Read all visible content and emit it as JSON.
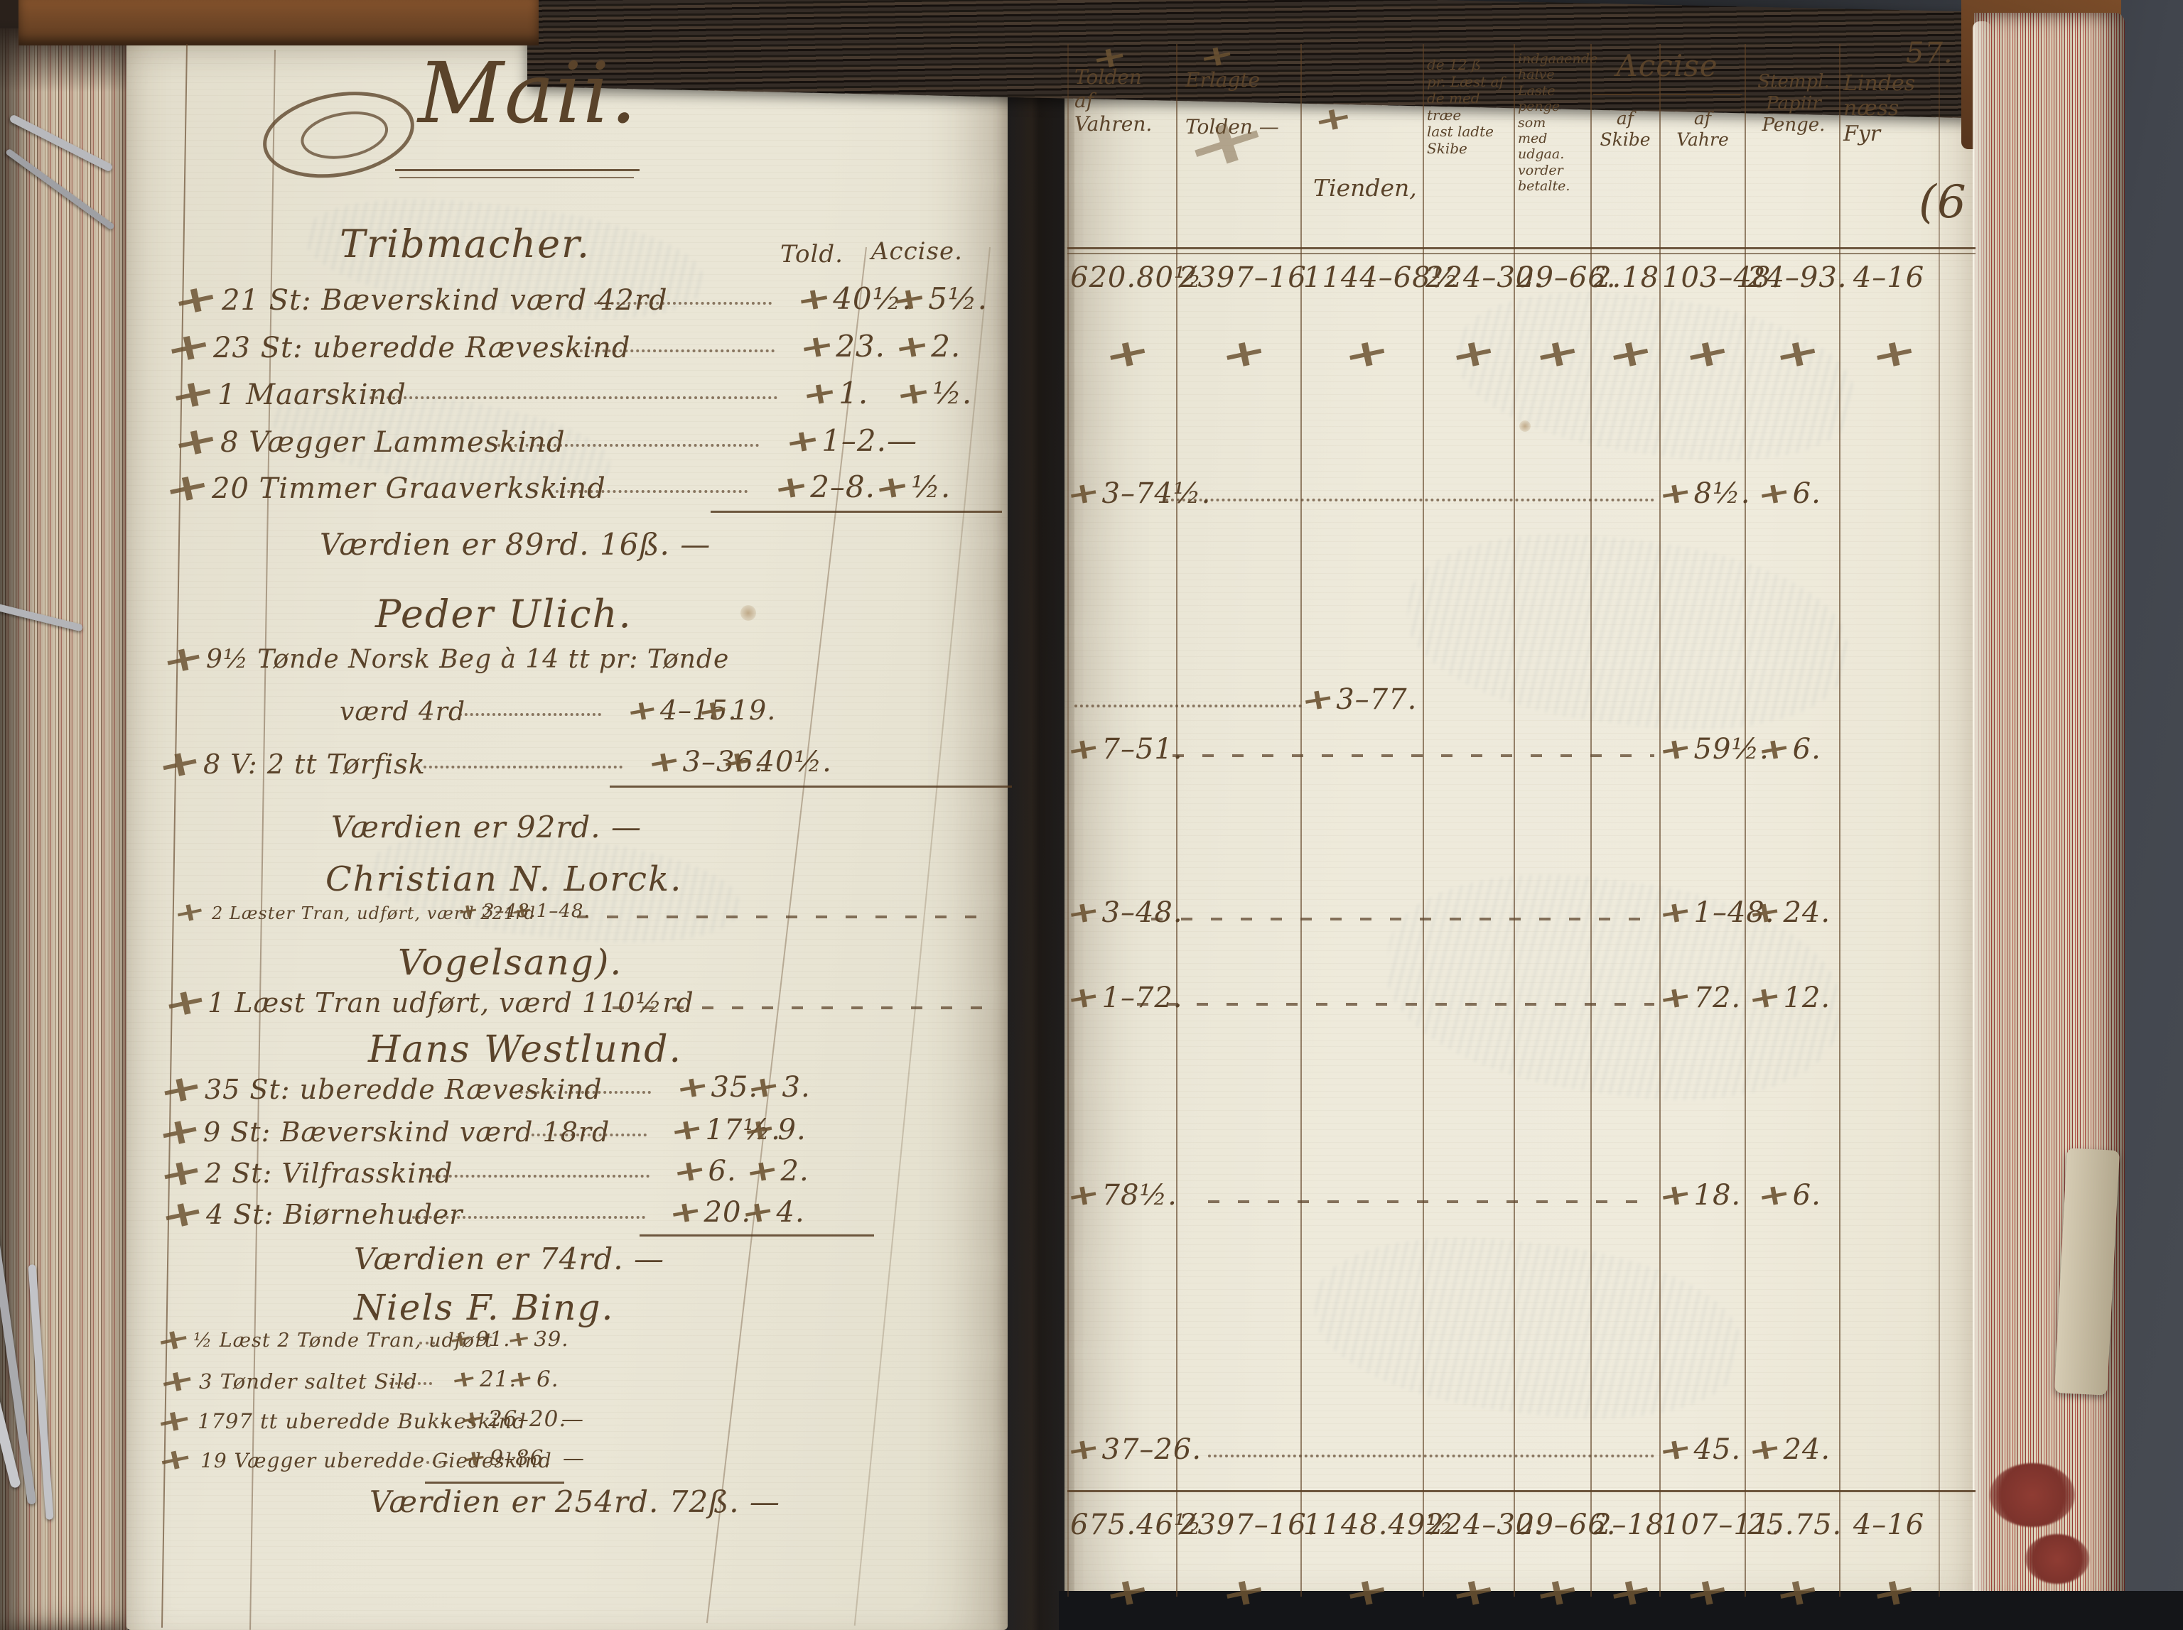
{
  "photo": {
    "page_number": "57.",
    "corner_mark": "(6"
  },
  "left_page": {
    "heading": "Maii.",
    "columns": {
      "told": "Told.",
      "accise": "Accise."
    },
    "rows": [
      {
        "type": "name",
        "text": "Tribmacher."
      },
      {
        "type": "entry",
        "cross": true,
        "text": "21 St: Bæverskind værd 42rd",
        "told": "40½.",
        "accise": "5½."
      },
      {
        "type": "entry",
        "cross": true,
        "text": "23 St: uberedde Ræveskind",
        "told": "23.",
        "accise": "2."
      },
      {
        "type": "entry",
        "cross": true,
        "text": "1 Maarskind",
        "told": "1.",
        "accise": "½."
      },
      {
        "type": "entry",
        "cross": true,
        "text": "8 Vægger Lammeskind",
        "told": "1–2.",
        "accise": "—"
      },
      {
        "type": "entry",
        "cross": true,
        "text": "20 Timmer Graaverkskind",
        "told": "2–8.",
        "accise": "½."
      },
      {
        "type": "sum",
        "text": "Værdien er 89rd. 16ß. —"
      },
      {
        "type": "name",
        "text": "Peder Ulich."
      },
      {
        "type": "entry",
        "cross": true,
        "text": "9½ Tønde Norsk Beg à 14 tt pr: Tønde"
      },
      {
        "type": "entry",
        "cross": false,
        "text": "værd 4rd",
        "told": "4–15.",
        "accise": "19."
      },
      {
        "type": "entry",
        "cross": true,
        "text": "8 V: 2 tt Tørfisk",
        "told": "3–36.",
        "accise": "40½."
      },
      {
        "type": "sum",
        "text": "Værdien er 92rd. —"
      },
      {
        "type": "name",
        "text": "Christian N. Lorck."
      },
      {
        "type": "entry",
        "cross": true,
        "text": "2 Læster Tran, udført, værd 221rd",
        "told": "3–48.",
        "accise": "1–48."
      },
      {
        "type": "name",
        "text": "Vogelsang)."
      },
      {
        "type": "entry",
        "cross": true,
        "text": "1 Læst Tran udført, værd 110½rd"
      },
      {
        "type": "name",
        "text": "Hans Westlund."
      },
      {
        "type": "entry",
        "cross": true,
        "text": "35 St: uberedde Ræveskind",
        "told": "35.",
        "accise": "3."
      },
      {
        "type": "entry",
        "cross": true,
        "text": "9 St: Bæverskind værd 18rd",
        "told": "17½.",
        "accise": "9."
      },
      {
        "type": "entry",
        "cross": true,
        "text": "2 St: Vilfrasskind",
        "told": "6.",
        "accise": "2."
      },
      {
        "type": "entry",
        "cross": true,
        "text": "4 St: Biørnehuder",
        "told": "20.",
        "accise": "4."
      },
      {
        "type": "sum",
        "text": "Værdien er 74rd. —"
      },
      {
        "type": "name",
        "text": "Niels F. Bing."
      },
      {
        "type": "entry",
        "cross": true,
        "text": "½ Læst 2 Tønde Tran, udført",
        "told": "91.",
        "accise": "39."
      },
      {
        "type": "entry",
        "cross": true,
        "text": "3 Tønder saltet Sild",
        "told": "21.",
        "accise": "6."
      },
      {
        "type": "entry",
        "cross": true,
        "text": "1797 tt uberedde Bukkeskind",
        "told": "26–20.",
        "accise": "—"
      },
      {
        "type": "entry",
        "cross": true,
        "text": "19 Vægger uberedde Giedeskind",
        "told": "9–86.",
        "accise": "—"
      },
      {
        "type": "sum",
        "text": "Værdien er 254rd. 72ß. —"
      }
    ]
  },
  "right_page": {
    "headers": {
      "c1": "Tolden\naf\nVahren.",
      "c2": "Erlagte\n\nTolden —",
      "c3": "Tienden,",
      "c4": "de 12 ß\npr. Læst af\nde med træe\nlast ladte\nSkibe",
      "c5": "indgaaende\nhalve Laste\npenge som\nmed udgaa.\nvorder\nbetalte.",
      "c6": "af\nSkibe",
      "c7": "af\nVahre",
      "c8": "Stempl.\nPapiir\nPenge.",
      "c9": "Lindes\nnæss\nFyr",
      "accise_group": "Accise"
    },
    "carried_row": [
      "620.80½",
      "2397–16",
      "1144–68½",
      "224–30.",
      "29–66.",
      "2.18",
      "103–48.",
      "24–93.",
      "4–16"
    ],
    "rows": [
      {
        "cells": {
          "c1": "3–74½.",
          "c7": "8½.",
          "c8": "6."
        }
      },
      {
        "cells": {
          "c3": "3–77."
        }
      },
      {
        "cells": {
          "c1": "7–51.",
          "c7": "59½.",
          "c8": "6."
        }
      },
      {
        "cells": {
          "c1": "3–48.",
          "c7": "1–48.",
          "c8": "24."
        }
      },
      {
        "cells": {
          "c1": "1–72.",
          "c7": "72.",
          "c8": "12."
        }
      },
      {
        "cells": {
          "c1": "78½.",
          "c7": "18.",
          "c8": "6."
        }
      },
      {
        "cells": {
          "c1": "37–26.",
          "c7": "45.",
          "c8": "24."
        }
      }
    ],
    "totals_row": [
      "675.46½",
      "2397–16.",
      "1148.49½",
      "224–30.",
      "29–66.",
      "2–18",
      "107–11.",
      "25.75.",
      "4–16"
    ]
  }
}
